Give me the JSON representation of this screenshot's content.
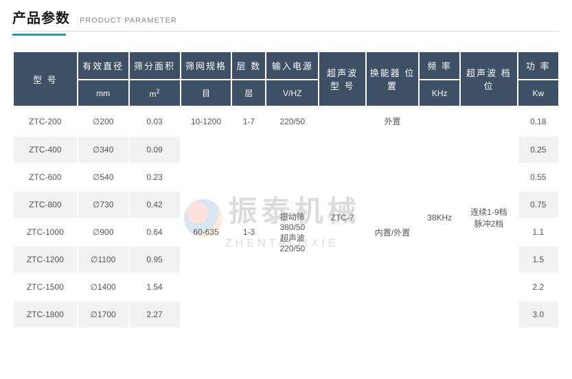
{
  "title": {
    "cn": "产品参数",
    "en": "PRODUCT PARAMETER"
  },
  "watermark": {
    "cn": "振泰机械",
    "en": "ZHENTAIJIXIE"
  },
  "colors": {
    "header_bg": "#3d5066",
    "header_text": "#ffffff",
    "row_bg": "#ffffff",
    "row_alt_bg": "#f2f2f2",
    "text": "#555555",
    "accent_bar": "#00a7cf",
    "title_text": "#1a1a1a",
    "subtitle_text": "#888888",
    "border": "#e0e0e0"
  },
  "typography": {
    "title_cn_fontsize": 20,
    "title_en_fontsize": 11,
    "th_fontsize": 13,
    "th_sub_fontsize": 12,
    "td_fontsize": 12
  },
  "headers": [
    {
      "top": "型 号",
      "sub": ""
    },
    {
      "top": "有效直径",
      "sub": "mm"
    },
    {
      "top": "筛分面积",
      "sub": "m2"
    },
    {
      "top": "筛网规格",
      "sub": "目"
    },
    {
      "top": "层 数",
      "sub": "层"
    },
    {
      "top": "输入电源",
      "sub": "V/HZ"
    },
    {
      "top": "超声波\n型 号",
      "sub": ""
    },
    {
      "top": "换能器\n位置",
      "sub": ""
    },
    {
      "top": "频 率",
      "sub": "KHz"
    },
    {
      "top": "超声波\n档位",
      "sub": ""
    },
    {
      "top": "功 率",
      "sub": "Kw"
    }
  ],
  "merged": {
    "mesh_group2": "60-635",
    "layer_group2": "1-3",
    "power_in_group2": "振动筛\n380/50\n超声波\n220/50",
    "ultrasonic_model": "ZTC-7",
    "transducer_pos_group2": "内置/外置",
    "frequency": "38KHz",
    "ultrasonic_gear": "连续1-9档\n脉冲2档"
  },
  "rows": [
    {
      "model": "ZTC-200",
      "diameter": "∅200",
      "area": "0.03",
      "mesh": "10-1200",
      "layer": "1-7",
      "power_in": "220/50",
      "transducer": "外置",
      "power": "0.18"
    },
    {
      "model": "ZTC-400",
      "diameter": "∅340",
      "area": "0.09",
      "power": "0.25"
    },
    {
      "model": "ZTC-600",
      "diameter": "∅540",
      "area": "0.23",
      "power": "0.55"
    },
    {
      "model": "ZTC-800",
      "diameter": "∅730",
      "area": "0.42",
      "power": "0.75"
    },
    {
      "model": "ZTC-1000",
      "diameter": "∅900",
      "area": "0.64",
      "power": "1.1"
    },
    {
      "model": "ZTC-1200",
      "diameter": "∅1100",
      "area": "0.95",
      "power": "1.5"
    },
    {
      "model": "ZTC-1500",
      "diameter": "∅1400",
      "area": "1.54",
      "power": "2.2"
    },
    {
      "model": "ZTC-1800",
      "diameter": "∅1700",
      "area": "2.27",
      "power": "3.0"
    }
  ]
}
